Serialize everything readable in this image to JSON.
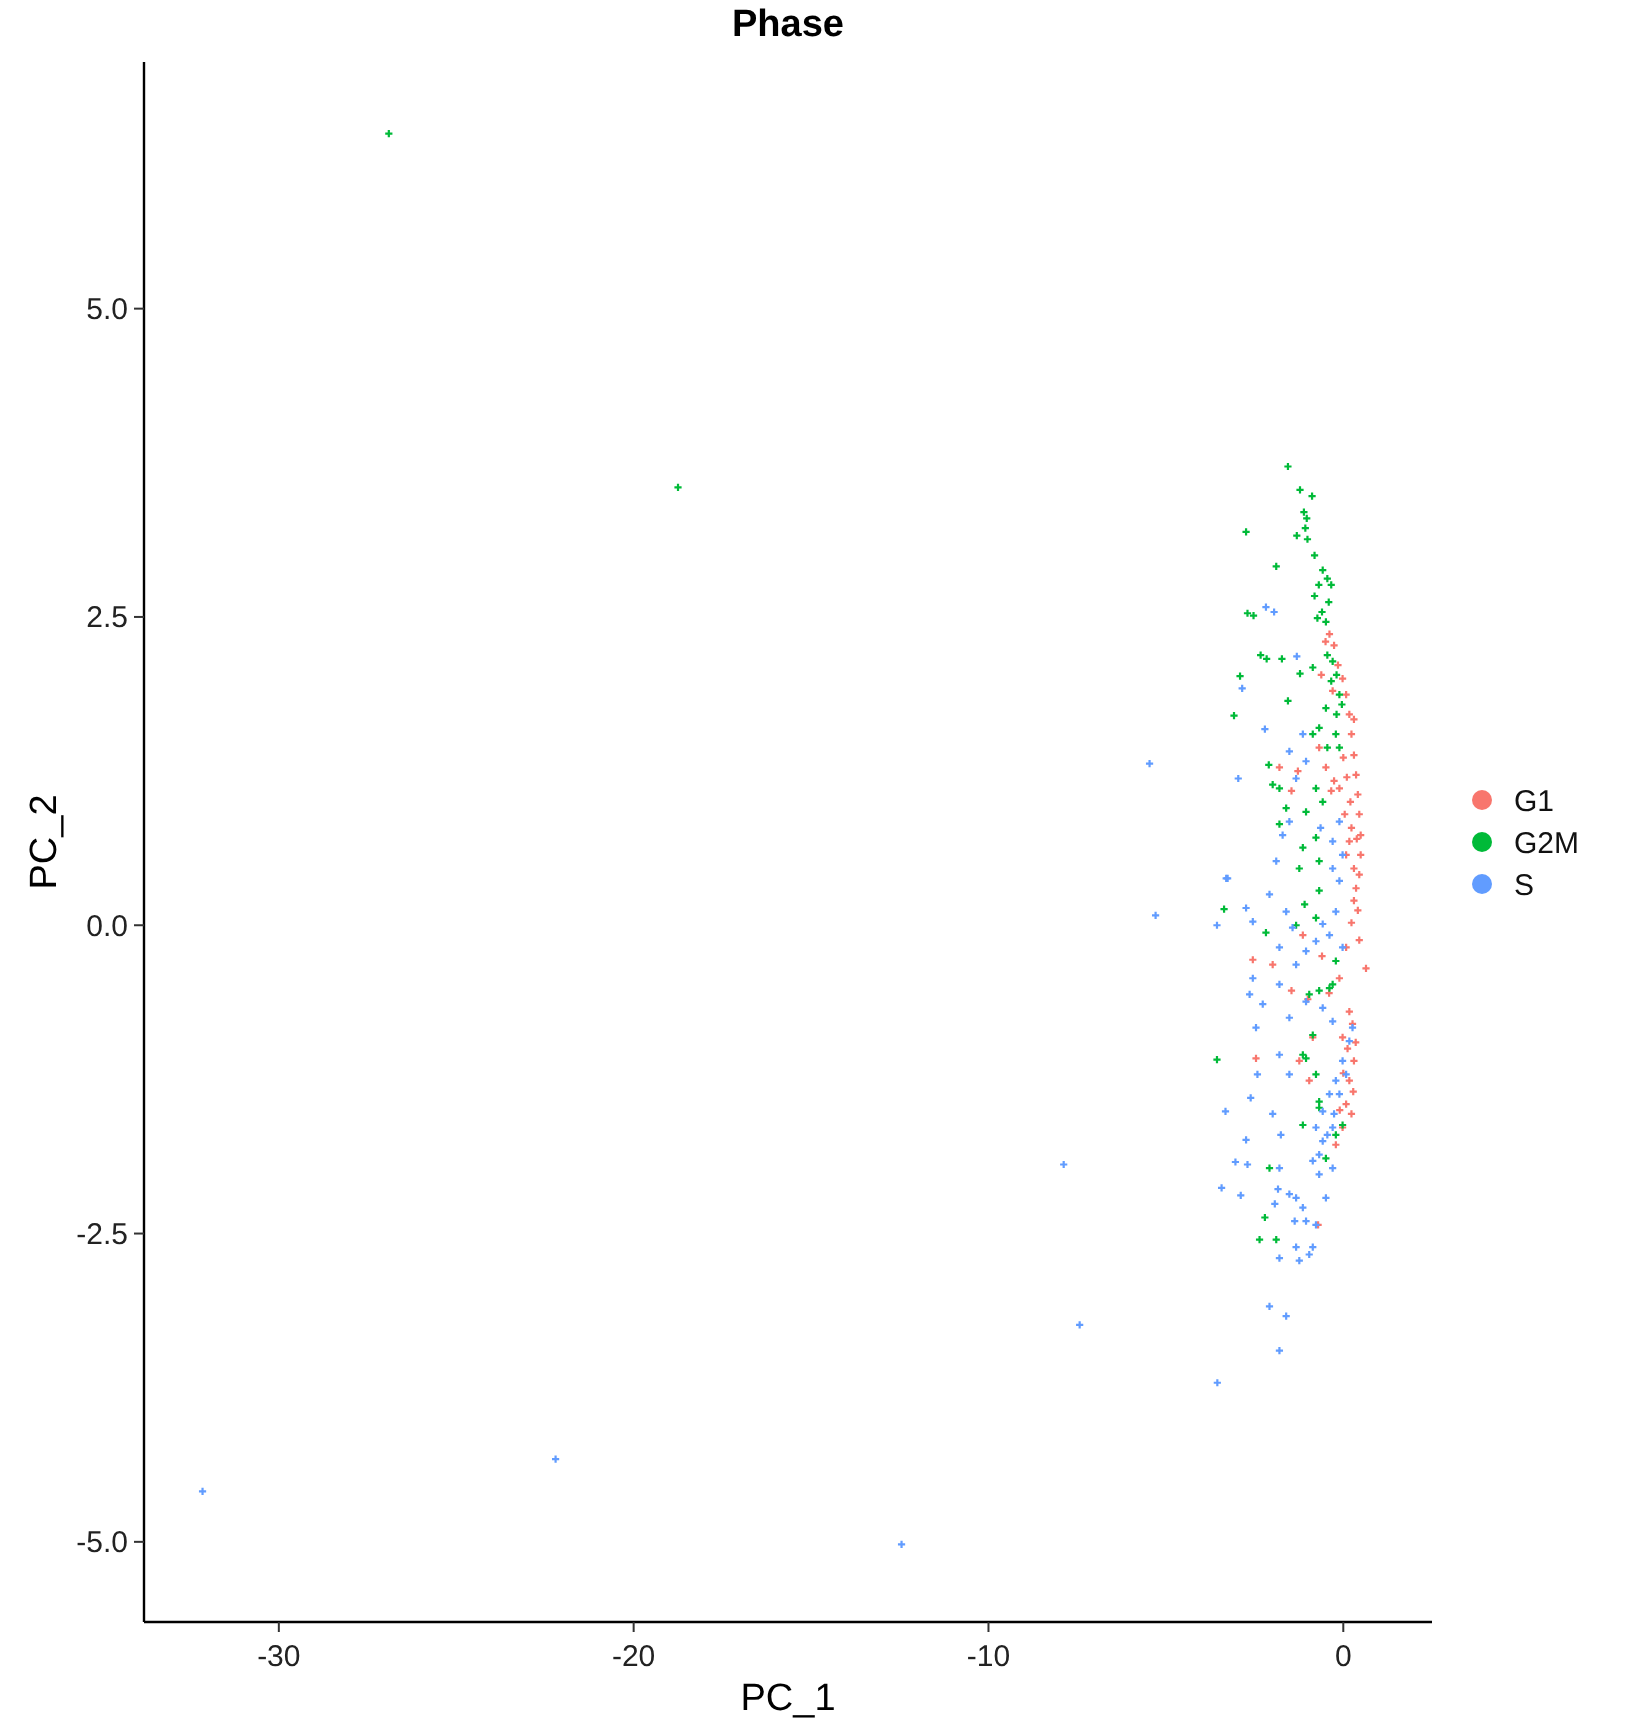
{
  "chart_data": {
    "type": "scatter",
    "title": "Phase",
    "xlabel": "PC_1",
    "ylabel": "PC_2",
    "xlim": [
      -33.8,
      2.5
    ],
    "ylim": [
      -5.65,
      7.0
    ],
    "xticks": [
      -30,
      -20,
      -10,
      0
    ],
    "yticks": [
      {
        "value": -5,
        "label": "-5.0"
      },
      {
        "value": -2.5,
        "label": "-2.5"
      },
      {
        "value": 0,
        "label": "0.0"
      },
      {
        "value": 2.5,
        "label": "2.5"
      },
      {
        "value": 5,
        "label": "5.0"
      }
    ],
    "marker": "cross",
    "legend": "right",
    "series": [
      {
        "name": "G1",
        "color": "#f8766d",
        "x": [
          -0.39,
          -0.26,
          -0.15,
          -0.02,
          0.08,
          0.17,
          0.23,
          0.3,
          0.36,
          0.41,
          0.45,
          0.49,
          0.49,
          0.45,
          0.3,
          0.17,
          0.04,
          -0.11,
          -0.26,
          -0.34,
          -0.49,
          -0.68,
          -1.28,
          -1.8,
          -1.46,
          -0.62,
          0.08,
          0.23,
          0.0,
          0.3,
          0.36,
          0.3,
          0.41,
          0.23,
          0.64,
          0.45,
          0.08,
          -0.11,
          0.17,
          -0.02,
          0.26,
          0.3,
          0.17,
          0.08,
          0.23,
          -0.02,
          -0.21,
          -1.99,
          -2.55,
          -2.46,
          -0.71,
          -0.96,
          -1.24,
          -0.86,
          -1.46,
          -1.14,
          0.12,
          0.0,
          -0.1,
          0.35,
          0.28,
          -0.5,
          -0.3,
          0.1,
          0.2,
          0.38,
          -0.6,
          -1.0,
          -0.4
        ],
        "values": [
          2.36,
          2.27,
          2.11,
          2.0,
          1.87,
          1.71,
          1.55,
          1.38,
          1.22,
          1.06,
          0.9,
          0.73,
          0.57,
          0.41,
          0.46,
          0.68,
          0.9,
          1.11,
          1.17,
          1.09,
          1.28,
          1.44,
          1.25,
          1.28,
          1.09,
          2.03,
          0.57,
          0.79,
          1.36,
          1.67,
          0.3,
          0.2,
          0.12,
          0.02,
          -0.35,
          -0.12,
          -0.18,
          -0.43,
          -0.7,
          -0.91,
          -0.8,
          -1.1,
          -1.26,
          -1.45,
          -1.53,
          -1.64,
          -1.78,
          -0.32,
          -0.28,
          -1.08,
          -2.43,
          -1.26,
          -1.1,
          -0.91,
          -0.53,
          -0.08,
          -1.0,
          -1.2,
          -1.5,
          -0.95,
          -1.35,
          2.3,
          1.9,
          1.2,
          1.0,
          0.7,
          -0.25,
          -0.6,
          -0.55
        ]
      },
      {
        "name": "G2M",
        "color": "#00ba38",
        "x": [
          -26.9,
          -18.75,
          -1.56,
          -1.22,
          -0.88,
          -1.11,
          -1.03,
          -1.07,
          -1.31,
          -1.01,
          -2.74,
          -0.81,
          -1.89,
          -0.58,
          -0.45,
          -0.69,
          -0.34,
          -0.81,
          -0.41,
          -0.6,
          -0.73,
          -0.49,
          -2.7,
          -2.53,
          -2.33,
          -2.16,
          -1.73,
          -2.91,
          -3.08,
          -1.56,
          -1.22,
          -0.86,
          -0.45,
          -0.3,
          -0.19,
          -0.34,
          -0.11,
          -0.49,
          -0.19,
          -0.04,
          -0.68,
          -0.86,
          -0.21,
          -0.45,
          -2.1,
          -1.99,
          -1.8,
          -0.77,
          -0.58,
          -1.61,
          -1.05,
          -0.77,
          -1.14,
          -1.8,
          -1.24,
          -0.68,
          -0.11,
          -3.36,
          -2.18,
          -1.09,
          -0.68,
          -0.77,
          -0.21,
          -0.39,
          -0.3,
          -0.68,
          -0.96,
          -1.14,
          -1.05,
          -3.56,
          -0.77,
          -0.68,
          -0.02,
          -0.21,
          -0.49,
          -2.08,
          -2.21,
          -2.36,
          -1.89,
          -1.14,
          -0.68,
          -0.86,
          -1.33
        ],
        "values": [
          6.42,
          3.55,
          3.72,
          3.53,
          3.48,
          3.35,
          3.3,
          3.22,
          3.16,
          3.13,
          3.19,
          3.0,
          2.91,
          2.88,
          2.81,
          2.76,
          2.76,
          2.67,
          2.62,
          2.54,
          2.49,
          2.46,
          2.53,
          2.51,
          2.19,
          2.16,
          2.16,
          2.02,
          1.7,
          1.82,
          2.04,
          2.09,
          2.19,
          2.14,
          2.03,
          1.98,
          1.87,
          1.76,
          1.71,
          1.79,
          1.6,
          1.55,
          1.55,
          1.44,
          1.3,
          1.14,
          1.11,
          1.11,
          1.0,
          0.95,
          0.92,
          0.71,
          0.63,
          0.82,
          0.46,
          0.52,
          1.44,
          0.13,
          -0.06,
          0.17,
          0.28,
          0.06,
          -0.29,
          -0.51,
          -0.48,
          -0.53,
          -0.56,
          -1.05,
          -1.08,
          -1.09,
          -1.21,
          -1.43,
          -1.62,
          -1.7,
          -1.89,
          -1.97,
          -2.37,
          -2.55,
          -2.55,
          -1.62,
          -1.48,
          -0.89,
          0.0
        ]
      },
      {
        "name": "S",
        "color": "#619cff",
        "x": [
          -32.15,
          -22.2,
          -12.45,
          -5.46,
          -5.29,
          -7.88,
          -7.43,
          -3.55,
          -2.18,
          -1.95,
          -1.31,
          -2.85,
          -2.96,
          -2.21,
          -1.52,
          -1.14,
          -1.05,
          -1.33,
          -1.52,
          -1.71,
          -1.89,
          -3.3,
          -0.64,
          -0.3,
          -0.02,
          -0.11,
          -3.26,
          -2.74,
          -3.56,
          -2.08,
          -1.61,
          -2.55,
          -1.43,
          -1.8,
          -1.33,
          -2.55,
          -2.64,
          -2.27,
          -1.8,
          -1.52,
          -2.46,
          -1.8,
          -1.52,
          -2.42,
          -2.61,
          -3.32,
          -1.99,
          -1.76,
          -2.74,
          -3.04,
          -2.7,
          -1.8,
          -3.43,
          -2.89,
          -1.84,
          -1.52,
          -1.93,
          -1.33,
          -1.14,
          -1.37,
          -1.05,
          -0.77,
          -0.49,
          -1.8,
          -1.24,
          -0.96,
          -0.86,
          -2.08,
          -1.61,
          -1.33,
          -0.68,
          -0.3,
          -0.86,
          -0.58,
          -0.3,
          -0.77,
          -0.58,
          -0.39,
          -0.21,
          -0.02,
          0.17,
          0.26,
          0.08,
          -0.11,
          -0.26,
          -0.45,
          -0.68,
          -0.58,
          -0.39,
          -0.21,
          -0.11,
          -0.3,
          -0.77,
          -1.05,
          -0.02,
          -0.58,
          -0.3,
          -1.05,
          -1.8
        ],
        "values": [
          -4.59,
          -4.33,
          -5.02,
          1.31,
          0.08,
          -1.94,
          -3.24,
          -3.71,
          2.58,
          2.54,
          2.18,
          1.92,
          1.19,
          1.59,
          1.41,
          1.55,
          1.33,
          1.19,
          0.84,
          0.73,
          0.52,
          0.38,
          0.79,
          0.68,
          0.57,
          0.84,
          0.38,
          0.14,
          0.0,
          0.25,
          0.11,
          0.03,
          -0.02,
          -0.18,
          -0.32,
          -0.43,
          -0.56,
          -0.64,
          -0.48,
          -0.75,
          -0.83,
          -1.05,
          -1.21,
          -1.21,
          -1.4,
          -1.51,
          -1.53,
          -1.7,
          -1.74,
          -1.92,
          -1.94,
          -1.97,
          -2.13,
          -2.19,
          -2.14,
          -2.18,
          -2.26,
          -2.21,
          -2.29,
          -2.4,
          -2.4,
          -2.43,
          -2.21,
          -2.7,
          -2.72,
          -2.67,
          -2.61,
          -3.09,
          -3.17,
          -2.61,
          -2.02,
          -1.97,
          -1.91,
          -1.75,
          -1.64,
          -1.64,
          -1.51,
          -1.37,
          -1.26,
          -1.1,
          -0.94,
          -0.83,
          -1.21,
          -1.37,
          -1.53,
          -1.7,
          -1.86,
          0.01,
          -0.08,
          0.11,
          0.36,
          0.46,
          -0.13,
          -0.21,
          -0.18,
          -0.67,
          -0.78,
          -0.62,
          -3.45
        ]
      }
    ]
  }
}
